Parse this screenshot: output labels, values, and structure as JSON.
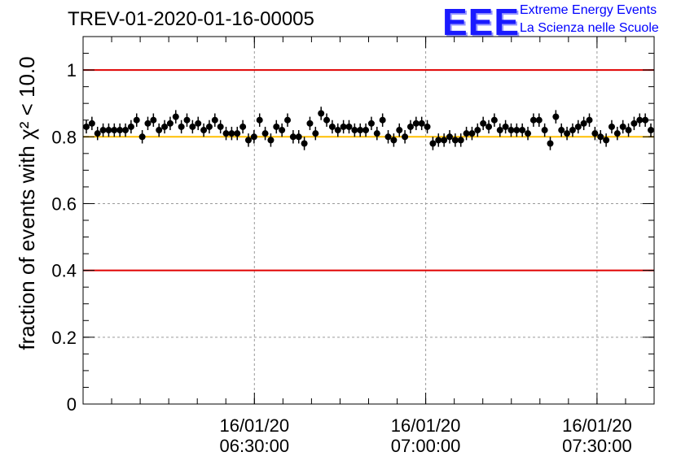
{
  "header": {
    "run_title": "TREV-01-2020-01-16-00005"
  },
  "logo": {
    "mark": "EEE",
    "line1": "Extreme Energy Events",
    "line2": "La Scienza nelle Scuole",
    "color": "#0000ff"
  },
  "chart_data": {
    "type": "scatter",
    "title": "TREV-01-2020-01-16-00005",
    "ylabel": "fraction of events with χ² < 10.0",
    "xlabel": "",
    "ylim": [
      0,
      1.1
    ],
    "xlim_minutes": [
      0,
      100
    ],
    "grid": true,
    "y_ticks": [
      "0",
      "0.2",
      "0.4",
      "0.6",
      "0.8",
      "1"
    ],
    "x_ticks": [
      {
        "date": "16/01/20",
        "time": "06:30:00",
        "minute": 30
      },
      {
        "date": "16/01/20",
        "time": "07:00:00",
        "minute": 60
      },
      {
        "date": "16/01/20",
        "time": "07:30:00",
        "minute": 90
      }
    ],
    "reference_lines": [
      {
        "y": 1.0,
        "color": "#e00000"
      },
      {
        "y": 0.8,
        "color": "#ffbf00"
      },
      {
        "y": 0.4,
        "color": "#e00000"
      }
    ],
    "error_bar": 0.02,
    "points_y": [
      0.83,
      0.84,
      0.81,
      0.82,
      0.82,
      0.82,
      0.82,
      0.82,
      0.83,
      0.85,
      0.8,
      0.84,
      0.85,
      0.82,
      0.83,
      0.84,
      0.86,
      0.83,
      0.85,
      0.83,
      0.84,
      0.82,
      0.83,
      0.85,
      0.83,
      0.81,
      0.81,
      0.81,
      0.83,
      0.79,
      0.8,
      0.85,
      0.81,
      0.79,
      0.83,
      0.82,
      0.85,
      0.8,
      0.8,
      0.78,
      0.84,
      0.81,
      0.87,
      0.85,
      0.83,
      0.82,
      0.83,
      0.83,
      0.82,
      0.82,
      0.82,
      0.84,
      0.81,
      0.85,
      0.8,
      0.79,
      0.82,
      0.8,
      0.83,
      0.84,
      0.84,
      0.83,
      0.78,
      0.79,
      0.79,
      0.8,
      0.79,
      0.79,
      0.81,
      0.81,
      0.82,
      0.84,
      0.83,
      0.85,
      0.82,
      0.83,
      0.82,
      0.82,
      0.82,
      0.81,
      0.85,
      0.85,
      0.82,
      0.78,
      0.86,
      0.82,
      0.81,
      0.82,
      0.83,
      0.84,
      0.85,
      0.81,
      0.8,
      0.79,
      0.83,
      0.81,
      0.83,
      0.82,
      0.84,
      0.85,
      0.85,
      0.82
    ]
  }
}
